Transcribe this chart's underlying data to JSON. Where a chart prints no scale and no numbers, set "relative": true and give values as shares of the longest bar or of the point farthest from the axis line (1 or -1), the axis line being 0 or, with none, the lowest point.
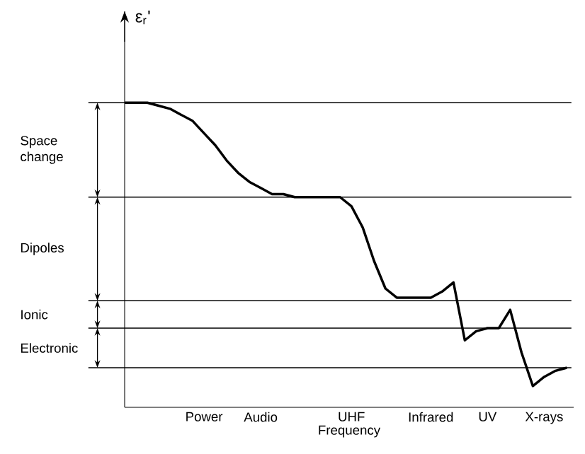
{
  "chart_data": {
    "type": "line",
    "relative": true,
    "color": "#000000",
    "xlabel": "Frequency",
    "ylabel": "ε$_{r}$'",
    "categories": [
      null,
      null,
      null,
      null,
      null,
      null,
      null,
      "Power",
      null,
      null,
      null,
      null,
      "Audio",
      null,
      null,
      null,
      null,
      null,
      null,
      null,
      "UHF",
      null,
      null,
      null,
      null,
      null,
      null,
      "Infrared",
      null,
      null,
      null,
      null,
      "UV",
      null,
      null,
      null,
      null,
      "X-rays",
      null,
      null
    ],
    "values": [
      1.0,
      1.0,
      1.0,
      0.99,
      0.98,
      0.96,
      0.94,
      0.9,
      0.86,
      0.81,
      0.77,
      0.74,
      0.72,
      0.7,
      0.7,
      0.69,
      0.69,
      0.69,
      0.69,
      0.69,
      0.66,
      0.59,
      0.48,
      0.39,
      0.36,
      0.36,
      0.36,
      0.36,
      0.38,
      0.41,
      0.22,
      0.25,
      0.26,
      0.26,
      0.32,
      0.18,
      0.07,
      0.1,
      0.12,
      0.13
    ],
    "ref_lines": [
      {
        "axis": "y",
        "value": 1.0
      },
      {
        "axis": "y",
        "value": 0.69
      },
      {
        "axis": "y",
        "value": 0.35
      },
      {
        "axis": "y",
        "value": 0.26
      },
      {
        "axis": "y",
        "value": 0.13
      }
    ],
    "annotations": [
      "Space change",
      "Dipoles",
      "Ionic",
      "Electronic"
    ]
  }
}
